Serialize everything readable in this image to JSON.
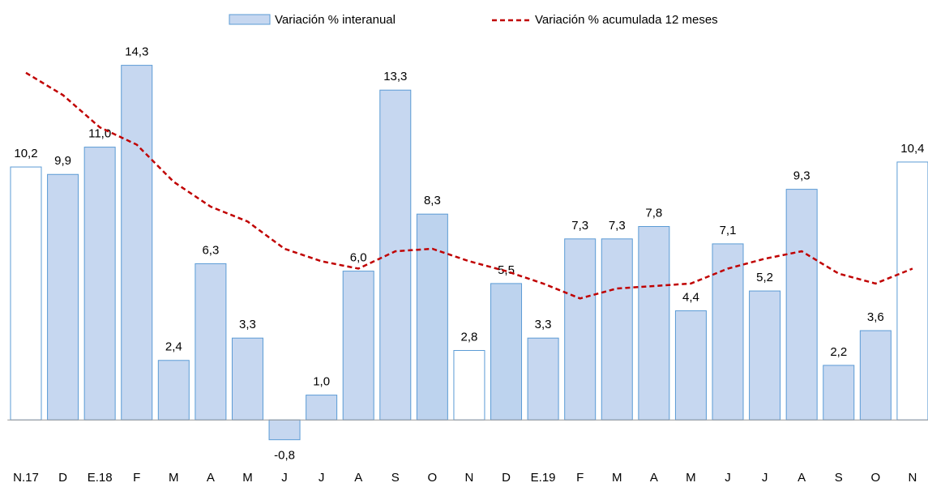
{
  "chart_data": {
    "type": "bar",
    "categories": [
      "N.17",
      "D",
      "E.18",
      "F",
      "M",
      "A",
      "M",
      "J",
      "J",
      "A",
      "S",
      "O",
      "N",
      "D",
      "E.19",
      "F",
      "M",
      "A",
      "M",
      "J",
      "J",
      "A",
      "S",
      "O",
      "N"
    ],
    "series": [
      {
        "name": "Variación % interanual",
        "type": "bar",
        "color": "#c6d7f0",
        "edge": "#5b9bd5",
        "colors": [
          "#ffffff",
          "#c6d7f0",
          "#c6d7f0",
          "#c6d7f0",
          "#c6d7f0",
          "#c6d7f0",
          "#c6d7f0",
          "#c6d7f0",
          "#c6d7f0",
          "#c6d7f0",
          "#c6d7f0",
          "#bdd3ee",
          "#ffffff",
          "#bdd3ee",
          "#c6d7f0",
          "#c6d7f0",
          "#c6d7f0",
          "#c6d7f0",
          "#c6d7f0",
          "#c6d7f0",
          "#c6d7f0",
          "#c6d7f0",
          "#c6d7f0",
          "#c6d7f0",
          "#ffffff"
        ],
        "values": [
          10.2,
          9.9,
          11.0,
          14.3,
          2.4,
          6.3,
          3.3,
          -0.8,
          1.0,
          6.0,
          13.3,
          8.3,
          2.8,
          5.5,
          3.3,
          7.3,
          7.3,
          7.8,
          4.4,
          7.1,
          5.2,
          9.3,
          2.2,
          3.6,
          10.4
        ],
        "value_labels": [
          "10,2",
          "9,9",
          "11,0",
          "14,3",
          "2,4",
          "6,3",
          "3,3",
          "-0,8",
          "1,0",
          "6,0",
          "13,3",
          "8,3",
          "2,8",
          "5,5",
          "3,3",
          "7,3",
          "7,3",
          "7,8",
          "4,4",
          "7,1",
          "5,2",
          "9,3",
          "2,2",
          "3,6",
          "10,4"
        ]
      },
      {
        "name": "Variación % acumulada 12 meses",
        "type": "line",
        "color": "#c00000",
        "values": [
          14.0,
          13.1,
          11.8,
          11.1,
          9.6,
          8.6,
          8.0,
          6.9,
          6.4,
          6.1,
          6.8,
          6.9,
          6.4,
          6.0,
          5.5,
          4.9,
          5.3,
          5.4,
          5.5,
          6.1,
          6.5,
          6.8,
          5.9,
          5.5,
          6.1
        ]
      }
    ],
    "ylim": [
      -2,
      15.3
    ],
    "legend": "top"
  }
}
